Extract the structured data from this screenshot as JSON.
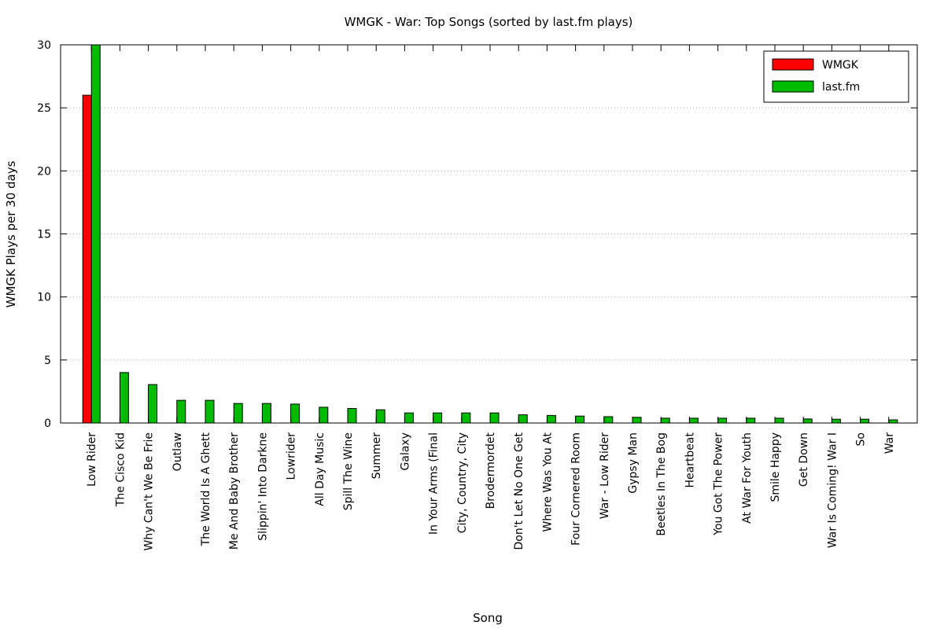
{
  "chart_data": {
    "type": "bar",
    "title": "WMGK - War: Top Songs (sorted by last.fm plays)",
    "xlabel": "Song",
    "ylabel": "WMGK Plays per 30 days",
    "ylim": [
      0,
      30
    ],
    "yticks": [
      0,
      5,
      10,
      15,
      20,
      25,
      30
    ],
    "grid": true,
    "legend_position": "top-right",
    "categories": [
      "Low Rider",
      "The Cisco Kid",
      "Why Can't We Be Frie",
      "Outlaw",
      "The World Is A Ghett",
      "Me And Baby Brother",
      "Slippin' Into Darkne",
      "Lowrider",
      "All Day Music",
      "Spill The Wine",
      "Summer",
      "Galaxy",
      "In Your Arms (Final",
      "City, Country, City",
      "Brodermordet",
      "Don't Let No One Get",
      "Where Was You At",
      "Four Cornered Room",
      "War - Low Rider",
      "Gypsy Man",
      "Beetles In The Bog",
      "Heartbeat",
      "You Got The Power",
      "At War For Youth",
      "Smile Happy",
      "Get Down",
      "War Is Coming! War I",
      "So",
      "War"
    ],
    "series": [
      {
        "name": "WMGK",
        "color": "#ff0000",
        "values": [
          26,
          0,
          0,
          0,
          0,
          0,
          0,
          0,
          0,
          0,
          0,
          0,
          0,
          0,
          0,
          0,
          0,
          0,
          0,
          0,
          0,
          0,
          0,
          0,
          0,
          0,
          0,
          0,
          0
        ]
      },
      {
        "name": "last.fm",
        "color": "#00bb00",
        "values": [
          30,
          4,
          3.05,
          1.8,
          1.8,
          1.55,
          1.55,
          1.5,
          1.25,
          1.15,
          1.05,
          0.8,
          0.8,
          0.8,
          0.8,
          0.65,
          0.6,
          0.55,
          0.5,
          0.45,
          0.38,
          0.38,
          0.38,
          0.38,
          0.38,
          0.32,
          0.3,
          0.3,
          0.25
        ]
      }
    ]
  }
}
